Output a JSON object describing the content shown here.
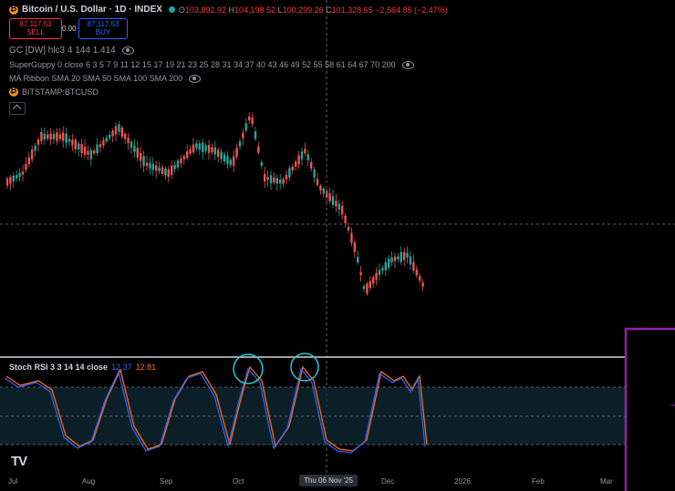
{
  "header": {
    "symbol_title": "Bitcoin / U.S. Dollar · 1D · INDEX",
    "ohlc": {
      "o_label": "O",
      "o": "103,892.92",
      "h_label": "H",
      "h": "104,198.52",
      "l_label": "L",
      "l": "100,299.26",
      "c_label": "C",
      "c": "101,328.65",
      "change": "−2,564.85 (−2.47%)"
    }
  },
  "trade": {
    "sell_price": "87,117.53",
    "sell_label": "SELL",
    "spread": "0.00",
    "buy_price": "87,117.53",
    "buy_label": "BUY"
  },
  "indicators": [
    {
      "label": "GC [DW] hlc3 4 144 1.414"
    },
    {
      "label": "SuperGuppy 0 close 6 3 5 7 9 11 12 15 17 19 21 23 25 28 31 34 37 40 43 46 49 52 55 58 61 64 67 70 200"
    },
    {
      "label": "MA Ribbon SMA 20 SMA 50 SMA 100 SMA 200"
    }
  ],
  "compare_symbol": "BITSTAMP:BTCUSD",
  "stoch_rsi": {
    "label": "Stoch RSI 3 3 14 14 close",
    "k_value": "12.37",
    "d_value": "12.81"
  },
  "time_axis": {
    "labels": [
      "Jul",
      "Aug",
      "Sep",
      "Oct",
      "Dec",
      "2026",
      "Feb",
      "Mar"
    ],
    "crosshair_date": "Thu 06 Nov '25"
  },
  "colors": {
    "up": "#26a69a",
    "down": "#ef5350",
    "k_line": "#2962ff",
    "d_line": "#ff6d00",
    "highlight_circle": "#26c6da",
    "box_outline": "#8e24aa"
  },
  "icons": {
    "logo": "tradingview-logo-icon",
    "collapse": "collapse-legend-icon"
  }
}
